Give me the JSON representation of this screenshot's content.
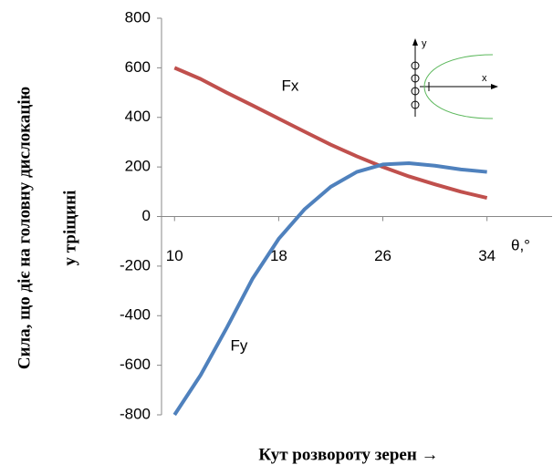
{
  "chart_data": {
    "type": "line",
    "x_label": "Кут розвороту зерен →",
    "y_label": [
      "Сила, що діє на головну дислокацію",
      "у тріщині"
    ],
    "x_unit_label": "θ,°",
    "x": [
      10,
      12,
      14,
      16,
      18,
      20,
      22,
      24,
      26,
      28,
      30,
      32,
      34
    ],
    "series": [
      {
        "name": "Fx",
        "color": "#c0504d",
        "values": [
          600,
          555,
          500,
          448,
          395,
          342,
          290,
          243,
          200,
          162,
          130,
          100,
          75
        ]
      },
      {
        "name": "Fy",
        "color": "#4f81bd",
        "values": [
          -800,
          -640,
          -450,
          -250,
          -90,
          30,
          120,
          180,
          210,
          215,
          205,
          190,
          180
        ]
      }
    ],
    "xlim": [
      9,
      39
    ],
    "xticks": [
      10,
      18,
      26,
      34
    ],
    "ylim": [
      -800,
      800
    ],
    "yticks": [
      -800,
      -600,
      -400,
      -200,
      0,
      200,
      400,
      600,
      800
    ],
    "grid": false,
    "inset": {
      "y_label": "y",
      "x_label": "x"
    }
  }
}
